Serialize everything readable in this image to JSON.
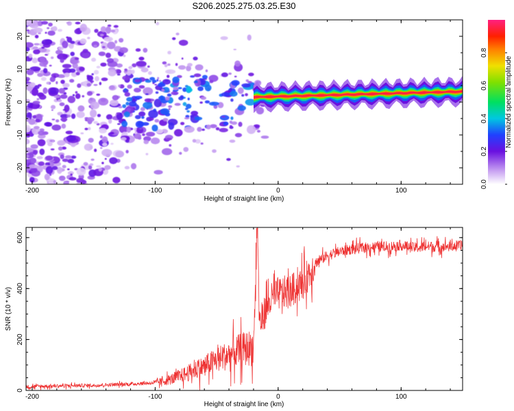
{
  "title": "S206.2025.275.03.25.E30",
  "chart_data": [
    {
      "type": "heatmap",
      "title": "",
      "xlabel": "Height of straight line (km)",
      "ylabel": "Frequency (Hz)",
      "xlim": [
        -205,
        150
      ],
      "ylim": [
        -25,
        25
      ],
      "xticks": [
        "-200",
        "-100",
        "0",
        "100"
      ],
      "yticks": [
        "20",
        "10",
        "0",
        "-10",
        "-20"
      ],
      "colorbar": {
        "label": "Normalized spectral amplitude",
        "range": [
          0,
          1
        ],
        "ticks": [
          "0.0",
          "0.2",
          "0.4",
          "0.6",
          "0.8"
        ]
      },
      "signal_band": {
        "x_start_km": -20,
        "x_end_km": 150,
        "freq_start_hz": 1.5,
        "freq_end_hz": 3.2,
        "peak_amplitude": 1.0
      },
      "noise_region": {
        "x_start_km": -205,
        "x_end_km": -20,
        "freq_range_hz": [
          -25,
          25
        ]
      }
    },
    {
      "type": "line",
      "title": "",
      "xlabel": "Height of straight line (km)",
      "ylabel": "SNR (10 * v/v)",
      "xlim": [
        -205,
        150
      ],
      "ylim": [
        0,
        640
      ],
      "xticks": [
        "-200",
        "-100",
        "0",
        "100"
      ],
      "yticks": [
        "600",
        "400",
        "200",
        "0"
      ],
      "series": [
        {
          "name": "SNR",
          "color": "#ee3333",
          "x": [
            -205,
            -180,
            -150,
            -120,
            -100,
            -90,
            -80,
            -70,
            -60,
            -50,
            -40,
            -30,
            -20,
            -17,
            -15,
            -10,
            -5,
            0,
            10,
            20,
            30,
            40,
            50,
            60,
            70,
            80,
            90,
            100,
            110,
            120,
            130,
            140,
            150
          ],
          "y": [
            15,
            18,
            20,
            25,
            30,
            40,
            55,
            75,
            95,
            120,
            140,
            160,
            170,
            640,
            260,
            320,
            360,
            380,
            390,
            420,
            500,
            530,
            545,
            555,
            560,
            565,
            565,
            570,
            560,
            565,
            565,
            565,
            570
          ]
        }
      ]
    }
  ]
}
